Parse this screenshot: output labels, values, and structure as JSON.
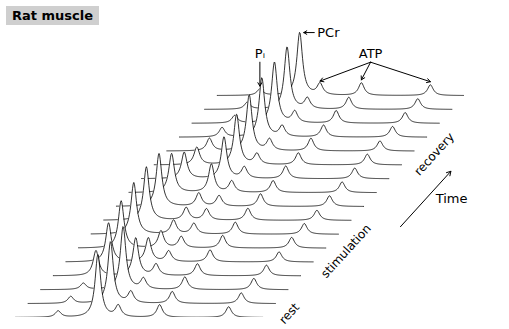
{
  "chart_data": {
    "type": "waterfall",
    "title": "Rat muscle",
    "tick_labels": false,
    "color": "#000000",
    "peaks": [
      {
        "label": "Pᵢ",
        "positions": [
          4.9
        ]
      },
      {
        "label": "PCr",
        "positions": [
          0
        ]
      },
      {
        "label": "ATP",
        "positions": [
          -2.5,
          -7.6,
          -16.1
        ]
      }
    ],
    "segments": [
      {
        "label": "rest",
        "spectra": [
          [
            10,
            100,
            18,
            20,
            17
          ],
          [
            11,
            98,
            18,
            19,
            17
          ],
          [
            10,
            100,
            17,
            20,
            18
          ]
        ]
      },
      {
        "label": "stimulation",
        "spectra": [
          [
            40,
            60,
            18,
            19,
            17
          ],
          [
            62,
            38,
            17,
            19,
            16
          ],
          [
            75,
            27,
            18,
            20,
            17
          ],
          [
            82,
            22,
            17,
            19,
            17
          ],
          [
            85,
            20,
            18,
            19,
            16
          ],
          [
            84,
            21,
            17,
            20,
            17
          ]
        ]
      },
      {
        "label": "recovery",
        "spectra": [
          [
            62,
            45,
            18,
            19,
            17
          ],
          [
            42,
            66,
            18,
            20,
            17
          ],
          [
            28,
            80,
            17,
            19,
            17
          ],
          [
            20,
            89,
            18,
            20,
            16
          ],
          [
            15,
            94,
            17,
            19,
            17
          ],
          [
            12,
            97,
            18,
            20,
            17
          ],
          [
            11,
            99,
            17,
            19,
            17
          ],
          [
            10,
            100,
            18,
            20,
            17
          ]
        ]
      }
    ],
    "time_label": "Time"
  }
}
